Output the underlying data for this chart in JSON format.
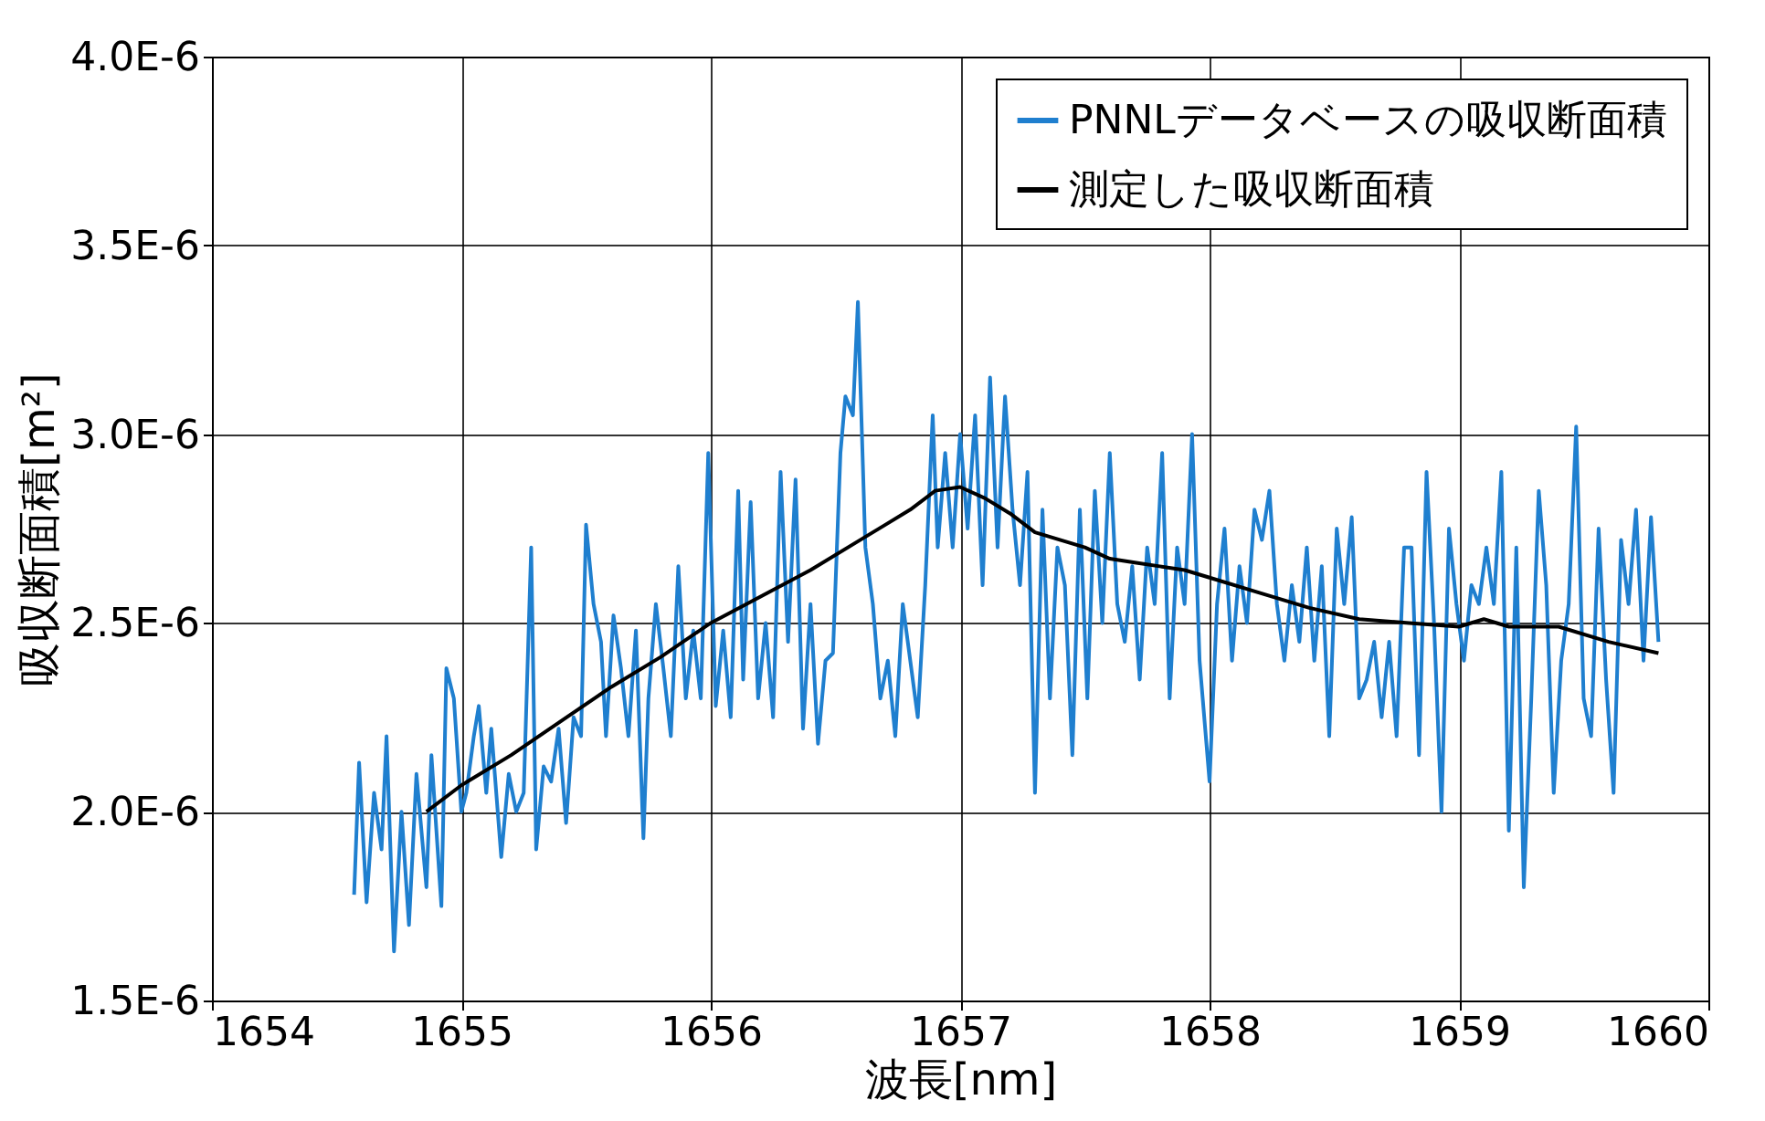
{
  "chart_data": {
    "type": "line",
    "xlabel": "波長[nm]",
    "ylabel": "吸収断面積[m²]",
    "xlim": [
      1654,
      1660
    ],
    "xticks": [
      1654,
      1655,
      1656,
      1657,
      1658,
      1659,
      1660
    ],
    "ylim": [
      1.5e-06,
      4e-06
    ],
    "yticks": [
      {
        "value": 1.5e-06,
        "label": "1.5E-6"
      },
      {
        "value": 2e-06,
        "label": "2.0E-6"
      },
      {
        "value": 2.5e-06,
        "label": "2.5E-6"
      },
      {
        "value": 3e-06,
        "label": "3.0E-6"
      },
      {
        "value": 3.5e-06,
        "label": "3.5E-6"
      },
      {
        "value": 4e-06,
        "label": "4.0E-6"
      }
    ],
    "grid": true,
    "legend": "top right",
    "marker": "none",
    "line_style": "solid",
    "series": [
      {
        "name": "PNNLデータベースの吸収断面積",
        "color": "#1f7fcf",
        "x": [
          1654.57,
          1654.59,
          1654.62,
          1654.65,
          1654.68,
          1654.7,
          1654.73,
          1654.76,
          1654.79,
          1654.82,
          1654.86,
          1654.88,
          1654.92,
          1654.94,
          1654.97,
          1655.0,
          1655.02,
          1655.05,
          1655.07,
          1655.1,
          1655.12,
          1655.16,
          1655.19,
          1655.22,
          1655.25,
          1655.28,
          1655.3,
          1655.33,
          1655.36,
          1655.39,
          1655.42,
          1655.45,
          1655.48,
          1655.5,
          1655.53,
          1655.56,
          1655.58,
          1655.61,
          1655.64,
          1655.67,
          1655.7,
          1655.73,
          1655.75,
          1655.78,
          1655.81,
          1655.84,
          1655.87,
          1655.9,
          1655.93,
          1655.96,
          1655.99,
          1656.02,
          1656.05,
          1656.08,
          1656.11,
          1656.13,
          1656.16,
          1656.19,
          1656.22,
          1656.25,
          1656.28,
          1656.31,
          1656.34,
          1656.37,
          1656.4,
          1656.43,
          1656.46,
          1656.49,
          1656.52,
          1656.54,
          1656.57,
          1656.59,
          1656.62,
          1656.65,
          1656.68,
          1656.71,
          1656.74,
          1656.77,
          1656.8,
          1656.83,
          1656.86,
          1656.89,
          1656.91,
          1656.94,
          1656.97,
          1657.0,
          1657.03,
          1657.06,
          1657.09,
          1657.12,
          1657.15,
          1657.18,
          1657.21,
          1657.24,
          1657.27,
          1657.3,
          1657.33,
          1657.36,
          1657.39,
          1657.42,
          1657.45,
          1657.48,
          1657.51,
          1657.54,
          1657.57,
          1657.6,
          1657.63,
          1657.66,
          1657.69,
          1657.72,
          1657.75,
          1657.78,
          1657.81,
          1657.84,
          1657.87,
          1657.9,
          1657.93,
          1657.96,
          1658.0,
          1658.03,
          1658.06,
          1658.09,
          1658.12,
          1658.15,
          1658.18,
          1658.21,
          1658.24,
          1658.27,
          1658.3,
          1658.33,
          1658.36,
          1658.39,
          1658.42,
          1658.45,
          1658.48,
          1658.51,
          1658.54,
          1658.57,
          1658.6,
          1658.63,
          1658.66,
          1658.69,
          1658.72,
          1658.75,
          1658.78,
          1658.81,
          1658.84,
          1658.87,
          1658.9,
          1658.93,
          1658.96,
          1658.99,
          1659.02,
          1659.05,
          1659.08,
          1659.11,
          1659.14,
          1659.17,
          1659.2,
          1659.23,
          1659.26,
          1659.29,
          1659.32,
          1659.35,
          1659.38,
          1659.41,
          1659.44,
          1659.47,
          1659.5,
          1659.53,
          1659.56,
          1659.59,
          1659.62,
          1659.65,
          1659.68,
          1659.71,
          1659.74,
          1659.77,
          1659.8
        ],
        "values": [
          1.78e-06,
          2.13e-06,
          1.76e-06,
          2.05e-06,
          1.9e-06,
          2.2e-06,
          1.63e-06,
          2e-06,
          1.7e-06,
          2.1e-06,
          1.8e-06,
          2.15e-06,
          1.75e-06,
          2.38e-06,
          2.3e-06,
          2e-06,
          2.05e-06,
          2.2e-06,
          2.28e-06,
          2.05e-06,
          2.22e-06,
          1.88e-06,
          2.1e-06,
          2e-06,
          2.05e-06,
          2.7e-06,
          1.9e-06,
          2.12e-06,
          2.08e-06,
          2.22e-06,
          1.97e-06,
          2.25e-06,
          2.2e-06,
          2.76e-06,
          2.55e-06,
          2.45e-06,
          2.2e-06,
          2.52e-06,
          2.38e-06,
          2.2e-06,
          2.48e-06,
          1.93e-06,
          2.3e-06,
          2.55e-06,
          2.38e-06,
          2.2e-06,
          2.65e-06,
          2.3e-06,
          2.48e-06,
          2.3e-06,
          2.95e-06,
          2.28e-06,
          2.48e-06,
          2.25e-06,
          2.85e-06,
          2.35e-06,
          2.82e-06,
          2.3e-06,
          2.5e-06,
          2.25e-06,
          2.9e-06,
          2.45e-06,
          2.88e-06,
          2.22e-06,
          2.55e-06,
          2.18e-06,
          2.4e-06,
          2.42e-06,
          2.95e-06,
          3.1e-06,
          3.05e-06,
          3.35e-06,
          2.7e-06,
          2.55e-06,
          2.3e-06,
          2.4e-06,
          2.2e-06,
          2.55e-06,
          2.4e-06,
          2.25e-06,
          2.6e-06,
          3.05e-06,
          2.7e-06,
          2.95e-06,
          2.7e-06,
          3e-06,
          2.75e-06,
          3.05e-06,
          2.6e-06,
          3.15e-06,
          2.7e-06,
          3.1e-06,
          2.8e-06,
          2.6e-06,
          2.9e-06,
          2.05e-06,
          2.8e-06,
          2.3e-06,
          2.7e-06,
          2.6e-06,
          2.15e-06,
          2.8e-06,
          2.3e-06,
          2.85e-06,
          2.5e-06,
          2.95e-06,
          2.55e-06,
          2.45e-06,
          2.65e-06,
          2.35e-06,
          2.7e-06,
          2.55e-06,
          2.95e-06,
          2.3e-06,
          2.7e-06,
          2.55e-06,
          3e-06,
          2.4e-06,
          2.08e-06,
          2.55e-06,
          2.75e-06,
          2.4e-06,
          2.65e-06,
          2.5e-06,
          2.8e-06,
          2.72e-06,
          2.85e-06,
          2.55e-06,
          2.4e-06,
          2.6e-06,
          2.45e-06,
          2.7e-06,
          2.4e-06,
          2.65e-06,
          2.2e-06,
          2.75e-06,
          2.55e-06,
          2.78e-06,
          2.3e-06,
          2.35e-06,
          2.45e-06,
          2.25e-06,
          2.45e-06,
          2.2e-06,
          2.7e-06,
          2.7e-06,
          2.15e-06,
          2.9e-06,
          2.5e-06,
          2e-06,
          2.75e-06,
          2.55e-06,
          2.4e-06,
          2.6e-06,
          2.55e-06,
          2.7e-06,
          2.55e-06,
          2.9e-06,
          1.95e-06,
          2.7e-06,
          1.8e-06,
          2.3e-06,
          2.85e-06,
          2.6e-06,
          2.05e-06,
          2.4e-06,
          2.55e-06,
          3.02e-06,
          2.3e-06,
          2.2e-06,
          2.75e-06,
          2.35e-06,
          2.05e-06,
          2.72e-06,
          2.55e-06,
          2.8e-06,
          2.4e-06,
          2.78e-06,
          2.45e-06
        ]
      },
      {
        "name": "測定した吸収断面積",
        "color": "#000000",
        "x": [
          1654.86,
          1655.0,
          1655.2,
          1655.4,
          1655.6,
          1655.8,
          1656.0,
          1656.2,
          1656.4,
          1656.6,
          1656.7,
          1656.8,
          1656.9,
          1657.0,
          1657.1,
          1657.2,
          1657.3,
          1657.4,
          1657.5,
          1657.6,
          1657.7,
          1657.8,
          1657.9,
          1658.0,
          1658.2,
          1658.4,
          1658.6,
          1658.8,
          1659.0,
          1659.1,
          1659.2,
          1659.4,
          1659.6,
          1659.8
        ],
        "values": [
          2e-06,
          2.07e-06,
          2.15e-06,
          2.24e-06,
          2.33e-06,
          2.41e-06,
          2.5e-06,
          2.57e-06,
          2.64e-06,
          2.72e-06,
          2.76e-06,
          2.8e-06,
          2.85e-06,
          2.86e-06,
          2.83e-06,
          2.79e-06,
          2.74e-06,
          2.72e-06,
          2.7e-06,
          2.67e-06,
          2.66e-06,
          2.65e-06,
          2.64e-06,
          2.62e-06,
          2.58e-06,
          2.54e-06,
          2.51e-06,
          2.5e-06,
          2.49e-06,
          2.51e-06,
          2.49e-06,
          2.49e-06,
          2.45e-06,
          2.42e-06
        ]
      }
    ]
  }
}
